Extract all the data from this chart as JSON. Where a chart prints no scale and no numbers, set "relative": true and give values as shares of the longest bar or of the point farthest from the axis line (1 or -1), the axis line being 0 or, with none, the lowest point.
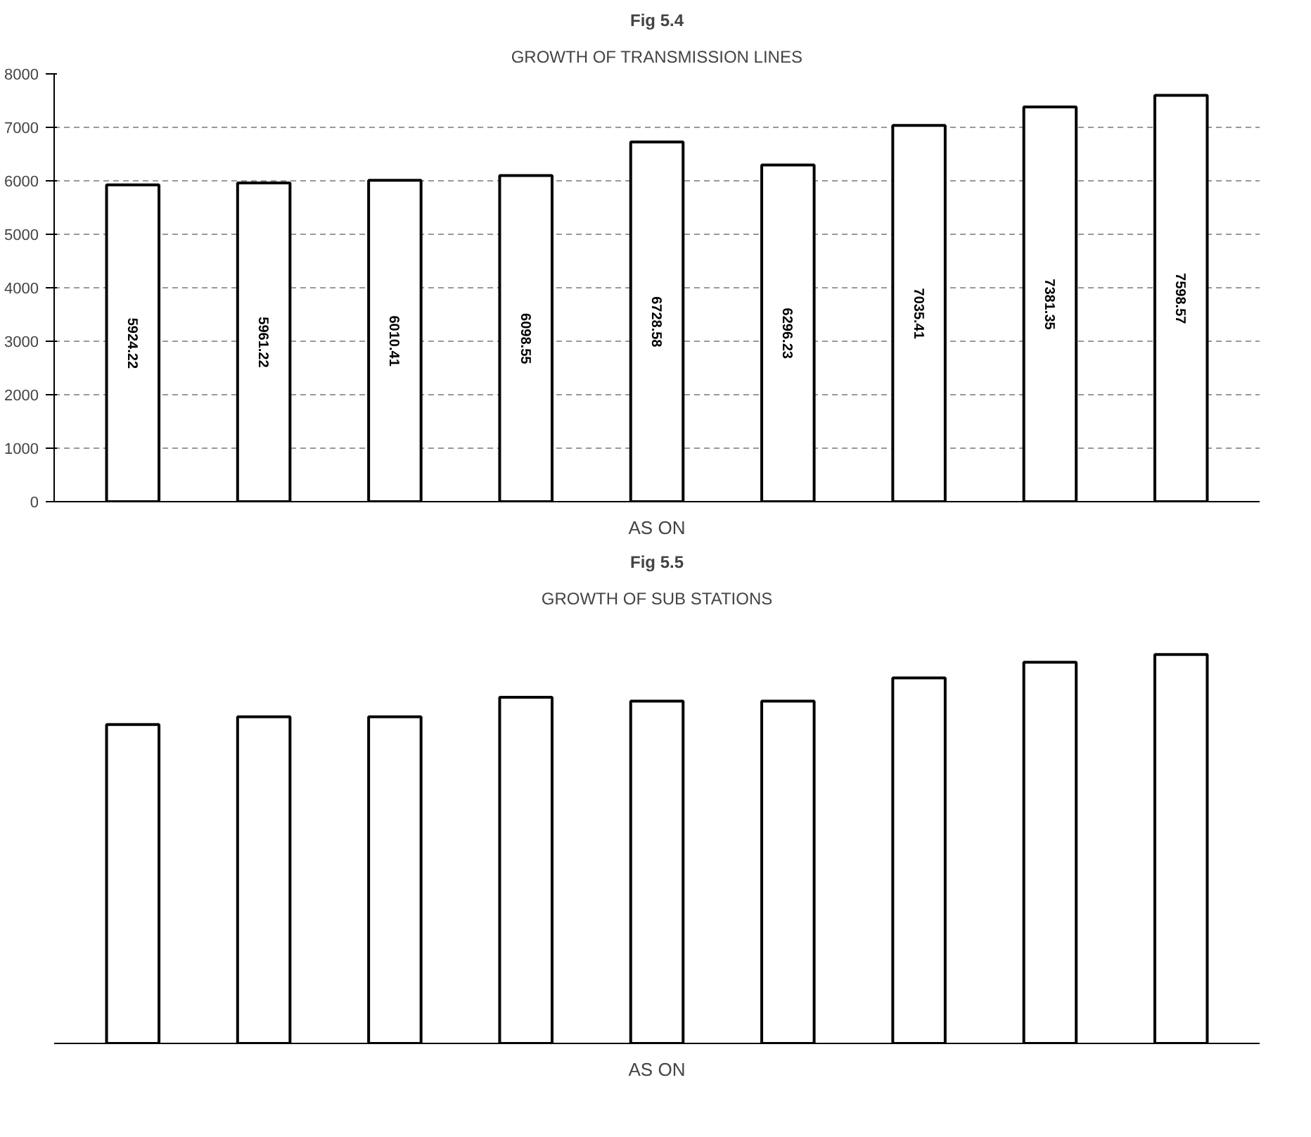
{
  "chart_data": [
    {
      "type": "bar",
      "title": "Fig 5.4",
      "subtitle": "GROWTH OF TRANSMISSION LINES",
      "xlabel": "AS ON",
      "categories": [
        null,
        null,
        null,
        null,
        null,
        null,
        null,
        null,
        null
      ],
      "series": [
        {
          "color": "#ffffff",
          "values": [
            5924.22,
            5961.22,
            6010.41,
            6098.55,
            6728.58,
            6296.23,
            7035.41,
            7381.35,
            7598.57
          ]
        }
      ],
      "ylim": [
        0,
        8000
      ],
      "yticks": [
        0,
        1000,
        2000,
        3000,
        4000,
        5000,
        6000,
        7000,
        8000
      ],
      "grid": "y",
      "data_labels": true
    },
    {
      "type": "bar",
      "title": "Fig 5.5",
      "subtitle": "GROWTH OF SUB STATIONS",
      "xlabel": "AS ON",
      "categories": [
        null,
        null,
        null,
        null,
        null,
        null,
        null,
        null,
        null
      ],
      "series": [
        {
          "color": "#ffffff",
          "values": [
            0.82,
            0.84,
            0.84,
            0.89,
            0.88,
            0.88,
            0.94,
            0.98,
            1
          ]
        }
      ],
      "relative": true
    }
  ]
}
